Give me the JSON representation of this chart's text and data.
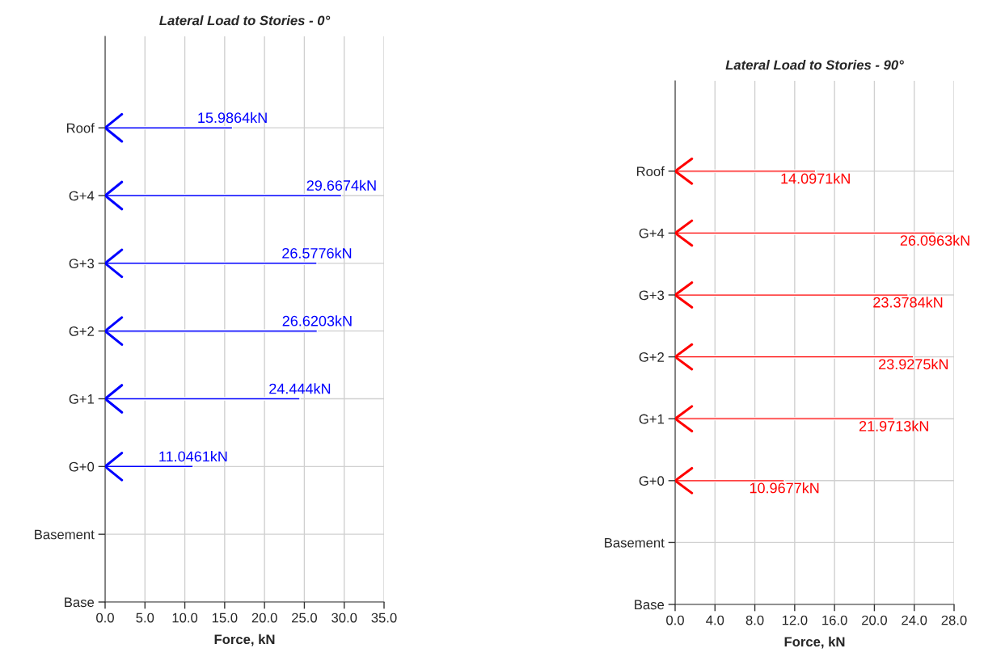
{
  "chart_data": [
    {
      "type": "bar",
      "orientation": "horizontal",
      "title": "Lateral Load to Stories - 0°",
      "xlabel": "Force, kN",
      "categories": [
        "Roof",
        "G+4",
        "G+3",
        "G+2",
        "G+1",
        "G+0",
        "Basement",
        "Base"
      ],
      "values": [
        15.9864,
        29.6674,
        26.5776,
        26.6203,
        24.444,
        11.0461,
        null,
        null
      ],
      "value_labels": [
        "15.9864kN",
        "29.6674kN",
        "26.5776kN",
        "26.6203kN",
        "24.444kN",
        "11.0461kN",
        null,
        null
      ],
      "color": "#0000ff",
      "xlim": [
        0,
        35
      ],
      "xticks": [
        {
          "value": 0,
          "label": "0.0"
        },
        {
          "value": 5,
          "label": "5.0"
        },
        {
          "value": 10,
          "label": "10.0"
        },
        {
          "value": 15,
          "label": "15.0"
        },
        {
          "value": 20,
          "label": "20.0"
        },
        {
          "value": 25,
          "label": "25.0"
        },
        {
          "value": 30,
          "label": "30.0"
        },
        {
          "value": 35,
          "label": "35.0"
        }
      ],
      "grid": true,
      "legend": false
    },
    {
      "type": "bar",
      "orientation": "horizontal",
      "title": "Lateral Load to Stories - 90°",
      "xlabel": "Force, kN",
      "categories": [
        "Roof",
        "G+4",
        "G+3",
        "G+2",
        "G+1",
        "G+0",
        "Basement",
        "Base"
      ],
      "values": [
        14.0971,
        26.0963,
        23.3784,
        23.9275,
        21.9713,
        10.9677,
        null,
        null
      ],
      "value_labels": [
        "14.0971kN",
        "26.0963kN",
        "23.3784kN",
        "23.9275kN",
        "21.9713kN",
        "10.9677kN",
        null,
        null
      ],
      "color": "#ff0000",
      "xlim": [
        0,
        28
      ],
      "xticks": [
        {
          "value": 0,
          "label": "0.0"
        },
        {
          "value": 4,
          "label": "4.0"
        },
        {
          "value": 8,
          "label": "8.0"
        },
        {
          "value": 12,
          "label": "12.0"
        },
        {
          "value": 16,
          "label": "16.0"
        },
        {
          "value": 20,
          "label": "20.0"
        },
        {
          "value": 24,
          "label": "24.0"
        },
        {
          "value": 28,
          "label": "28.0"
        }
      ],
      "grid": true,
      "legend": false
    }
  ]
}
